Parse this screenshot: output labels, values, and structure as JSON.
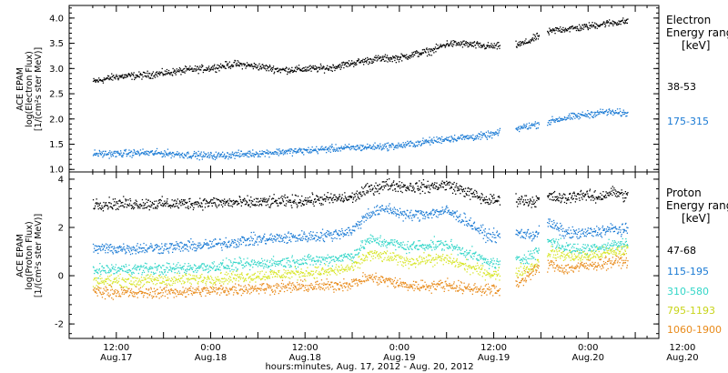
{
  "chart_data": [
    {
      "type": "scatter",
      "panel": "electron",
      "ylabel_lines": [
        "ACE EPAM",
        "log(Electron Flux)",
        "[1/(cm²s ster MeV)]"
      ],
      "ylim": [
        0.95,
        4.25
      ],
      "yticks": [
        1.0,
        1.5,
        2.0,
        2.5,
        3.0,
        3.5,
        4.0
      ],
      "ytick_labels": [
        "1.0",
        "1.5",
        "2.0",
        "2.5",
        "3.0",
        "3.5",
        "4.0"
      ],
      "legend_title_lines": [
        "Electron",
        "Energy range",
        "[keV]"
      ],
      "series": [
        {
          "name": "38-53",
          "color": "#000000",
          "x": [
            0,
            6,
            12,
            18,
            24,
            30,
            36,
            42,
            48,
            54,
            60,
            66,
            72,
            78,
            82,
            86,
            90,
            94,
            100,
            106,
            110,
            114,
            118,
            124,
            130,
            136
          ],
          "y": [
            2.75,
            2.85,
            2.87,
            2.92,
            2.98,
            3.02,
            3.1,
            3.05,
            2.98,
            3.0,
            3.02,
            3.12,
            3.2,
            3.22,
            3.3,
            3.36,
            3.5,
            3.5,
            3.45,
            3.45,
            3.52,
            3.68,
            3.78,
            3.82,
            3.9,
            3.95
          ],
          "gaps": [
            [
              103.5,
              107.5
            ],
            [
              113.5,
              115.5
            ]
          ]
        },
        {
          "name": "175-315",
          "color": "#1a7ad4",
          "x": [
            0,
            6,
            12,
            18,
            24,
            30,
            36,
            42,
            48,
            54,
            60,
            66,
            72,
            78,
            84,
            90,
            96,
            100,
            106,
            110,
            114,
            118,
            124,
            130,
            136
          ],
          "y": [
            1.32,
            1.32,
            1.34,
            1.33,
            1.3,
            1.28,
            1.3,
            1.33,
            1.36,
            1.38,
            1.42,
            1.44,
            1.46,
            1.48,
            1.55,
            1.62,
            1.65,
            1.68,
            1.78,
            1.86,
            1.92,
            2.0,
            2.08,
            2.15,
            2.12
          ],
          "gaps": [
            [
              103.5,
              107.5
            ],
            [
              113.5,
              115.5
            ]
          ]
        }
      ]
    },
    {
      "type": "scatter",
      "panel": "proton",
      "ylabel_lines": [
        "ACE EPAM",
        "log(Proton Flux)",
        "[1/(cm²s ster MeV)]"
      ],
      "ylim": [
        -2.6,
        4.3
      ],
      "yticks": [
        -2,
        0,
        2,
        4
      ],
      "ytick_labels": [
        "-2",
        "0",
        "2",
        "4"
      ],
      "legend_title_lines": [
        "Proton",
        "Energy range",
        "[keV]"
      ],
      "series": [
        {
          "name": "47-68",
          "color": "#000000",
          "x": [
            0,
            10,
            20,
            30,
            40,
            50,
            60,
            66,
            70,
            75,
            80,
            85,
            90,
            95,
            100,
            103,
            107,
            112,
            116,
            120,
            124,
            128,
            132,
            136
          ],
          "y": [
            3.0,
            3.0,
            3.0,
            3.05,
            3.05,
            3.1,
            3.2,
            3.25,
            3.6,
            3.8,
            3.7,
            3.7,
            3.8,
            3.5,
            3.15,
            3.15,
            3.2,
            3.1,
            3.3,
            3.2,
            3.4,
            3.25,
            3.5,
            3.3
          ],
          "gaps": [
            [
              103.5,
              107.5
            ],
            [
              113.5,
              115.5
            ]
          ]
        },
        {
          "name": "115-195",
          "color": "#1a7ad4",
          "x": [
            0,
            10,
            20,
            30,
            40,
            50,
            60,
            66,
            70,
            75,
            80,
            85,
            90,
            95,
            100,
            103,
            107,
            112,
            116,
            120,
            124,
            128,
            132,
            136
          ],
          "y": [
            1.15,
            1.15,
            1.2,
            1.3,
            1.5,
            1.6,
            1.7,
            1.9,
            2.6,
            2.8,
            2.5,
            2.6,
            2.7,
            2.3,
            1.7,
            1.65,
            1.8,
            1.7,
            2.2,
            1.8,
            1.75,
            1.85,
            1.95,
            1.9
          ],
          "gaps": [
            [
              103.5,
              107.5
            ],
            [
              113.5,
              115.5
            ]
          ]
        },
        {
          "name": "310-580",
          "color": "#33d6c8",
          "x": [
            0,
            10,
            20,
            30,
            40,
            50,
            60,
            66,
            70,
            75,
            80,
            85,
            90,
            95,
            100,
            103,
            107,
            112,
            116,
            120,
            124,
            128,
            132,
            136
          ],
          "y": [
            0.25,
            0.3,
            0.3,
            0.4,
            0.5,
            0.6,
            0.7,
            0.85,
            1.5,
            1.4,
            1.2,
            1.3,
            1.3,
            1.0,
            0.6,
            0.5,
            0.6,
            0.9,
            1.5,
            1.2,
            1.1,
            1.2,
            1.3,
            1.35
          ],
          "gaps": [
            [
              103.5,
              107.5
            ],
            [
              113.5,
              115.5
            ]
          ]
        },
        {
          "name": "795-1193",
          "color": "#d8e62a",
          "x": [
            0,
            10,
            20,
            30,
            40,
            50,
            60,
            66,
            70,
            75,
            80,
            85,
            90,
            95,
            100,
            103,
            107,
            112,
            116,
            120,
            124,
            128,
            132,
            136
          ],
          "y": [
            -0.2,
            -0.2,
            -0.15,
            -0.1,
            0.0,
            0.1,
            0.2,
            0.35,
            0.9,
            0.8,
            0.6,
            0.7,
            0.7,
            0.4,
            0.15,
            0.05,
            0.15,
            0.4,
            1.0,
            0.85,
            0.8,
            0.9,
            1.0,
            1.1
          ],
          "gaps": [
            [
              103.5,
              107.5
            ],
            [
              113.5,
              115.5
            ]
          ]
        },
        {
          "name": "1060-1900",
          "color": "#e88a1a",
          "x": [
            0,
            10,
            20,
            30,
            40,
            50,
            60,
            66,
            70,
            75,
            80,
            85,
            90,
            95,
            100,
            103,
            107,
            112,
            116,
            120,
            124,
            128,
            132,
            136
          ],
          "y": [
            -0.6,
            -0.7,
            -0.65,
            -0.6,
            -0.5,
            -0.45,
            -0.4,
            -0.3,
            -0.05,
            -0.2,
            -0.4,
            -0.4,
            -0.35,
            -0.5,
            -0.55,
            -0.6,
            -0.4,
            0.2,
            0.5,
            0.3,
            0.4,
            0.5,
            0.6,
            0.65
          ],
          "gaps": [
            [
              103.5,
              107.5
            ],
            [
              113.5,
              115.5
            ]
          ]
        }
      ]
    }
  ],
  "x_axis": {
    "xlim": [
      -6,
      144
    ],
    "major_ticks": [
      6,
      30,
      54,
      78,
      102,
      126,
      150
    ],
    "tick_labels_top": [
      "12:00",
      "0:00",
      "12:00",
      "0:00",
      "12:00",
      "0:00",
      "12:00"
    ],
    "tick_labels_bottom": [
      "Aug.17",
      "Aug.18",
      "Aug.18",
      "Aug.19",
      "Aug.19",
      "Aug.20",
      "Aug.20"
    ],
    "xlabel": "hours:minutes, Aug. 17, 2012 - Aug. 20, 2012"
  }
}
